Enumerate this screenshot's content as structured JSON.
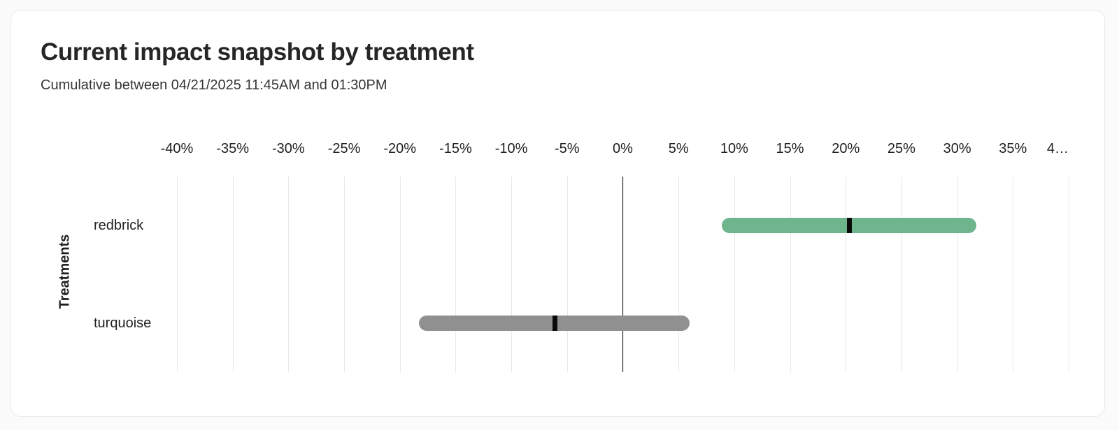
{
  "page": {
    "background": "#fbfbfb",
    "card_background": "#ffffff",
    "card_border_color": "#e9e9e9"
  },
  "chart_data": {
    "type": "bar",
    "subtype": "horizontal_interval_bar",
    "title": "Current impact snapshot by treatment",
    "subtitle": "Cumulative between 04/21/2025 11:45AM and 01:30PM",
    "ylabel": "Treatments",
    "xlabel": "",
    "categories": [
      "redbrick",
      "turquoise"
    ],
    "series": [
      {
        "name": "redbrick",
        "lower_pct": 8.9,
        "upper_pct": 31.7,
        "point_pct": 20.3,
        "bar_color": "#6eb48c"
      },
      {
        "name": "turquoise",
        "lower_pct": -18.3,
        "upper_pct": 6.0,
        "point_pct": -6.1,
        "bar_color": "#909090"
      }
    ],
    "x_axis": {
      "min": -40,
      "max": 40,
      "tick_step": 5,
      "tick_values": [
        -40,
        -35,
        -30,
        -25,
        -20,
        -15,
        -10,
        -5,
        0,
        5,
        10,
        15,
        20,
        25,
        30,
        35,
        40
      ],
      "tick_labels": [
        "-40%",
        "-35%",
        "-30%",
        "-25%",
        "-20%",
        "-15%",
        "-10%",
        "-5%",
        "0%",
        "5%",
        "10%",
        "15%",
        "20%",
        "25%",
        "30%",
        "35%",
        "4…"
      ],
      "grid": true,
      "zero_line": true
    },
    "marker_color": "#0a0a0a",
    "gridline_color": "#e8e8e8",
    "zero_line_color": "#1a1a1a",
    "legend": "none"
  }
}
